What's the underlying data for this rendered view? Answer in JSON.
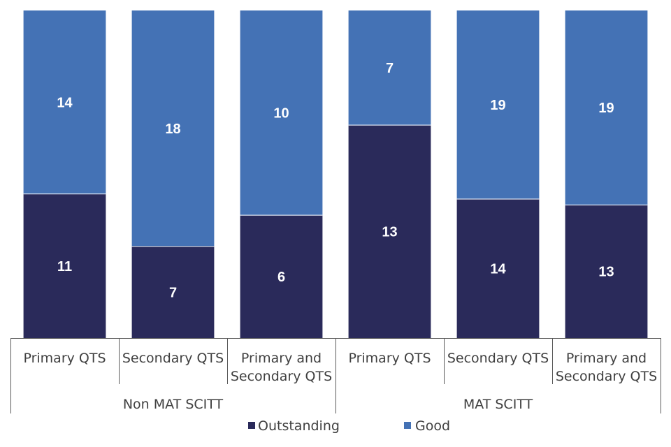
{
  "chart_data": {
    "type": "bar",
    "stacked": true,
    "normalized": true,
    "groups": [
      {
        "label": "Non MAT SCITT",
        "categories": [
          {
            "label": [
              "Primary QTS"
            ]
          },
          {
            "label": [
              "Secondary QTS"
            ]
          },
          {
            "label": [
              "Primary and",
              "Secondary QTS"
            ]
          }
        ]
      },
      {
        "label": "MAT SCITT",
        "categories": [
          {
            "label": [
              "Primary QTS"
            ]
          },
          {
            "label": [
              "Secondary QTS"
            ]
          },
          {
            "label": [
              "Primary and",
              "Secondary QTS"
            ]
          }
        ]
      }
    ],
    "series": [
      {
        "name": "Outstanding",
        "color": "#2a2a5a",
        "values": [
          11,
          7,
          6,
          13,
          14,
          13
        ]
      },
      {
        "name": "Good",
        "color": "#4472b5",
        "values": [
          14,
          18,
          10,
          7,
          19,
          19
        ]
      }
    ],
    "legend": "bottom",
    "grid": false
  }
}
